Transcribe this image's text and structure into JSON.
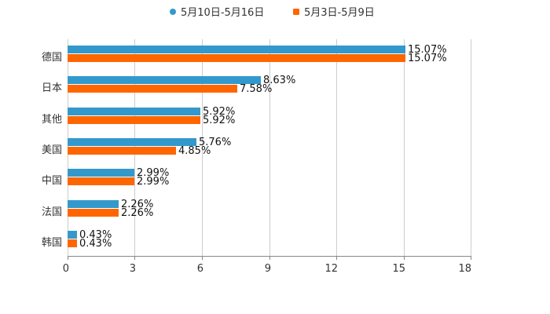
{
  "legend": [
    {
      "label": "5月10日-5月16日",
      "color": "#3399cc"
    },
    {
      "label": "5月3日-5月9日",
      "color": "#ff6600"
    }
  ],
  "axis": {
    "ticks": [
      "0",
      "3",
      "6",
      "9",
      "12",
      "15",
      "18"
    ]
  },
  "categories": [
    "德国",
    "日本",
    "其他",
    "美国",
    "中国",
    "法国",
    "韩国"
  ],
  "labels": {
    "s1": [
      "15.07%",
      "8.63%",
      "5.92%",
      "5.76%",
      "2.99%",
      "2.26%",
      "0.43%"
    ],
    "s2": [
      "15.07%",
      "7.58%",
      "5.92%",
      "4.85%",
      "2.99%",
      "2.26%",
      "0.43%"
    ]
  },
  "chart_data": {
    "type": "bar",
    "orientation": "horizontal",
    "categories": [
      "德国",
      "日本",
      "其他",
      "美国",
      "中国",
      "法国",
      "韩国"
    ],
    "series": [
      {
        "name": "5月10日-5月16日",
        "color": "#3399cc",
        "values": [
          15.07,
          8.63,
          5.92,
          5.76,
          2.99,
          2.26,
          0.43
        ]
      },
      {
        "name": "5月3日-5月9日",
        "color": "#ff6600",
        "values": [
          15.07,
          7.58,
          5.92,
          4.85,
          2.99,
          2.26,
          0.43
        ]
      }
    ],
    "title": "",
    "xlabel": "",
    "ylabel": "",
    "xlim": [
      0,
      18
    ],
    "xticks": [
      0,
      3,
      6,
      9,
      12,
      15,
      18
    ],
    "grid": true,
    "legend_position": "top",
    "value_suffix": "%"
  }
}
